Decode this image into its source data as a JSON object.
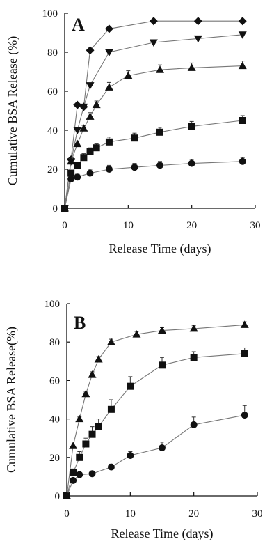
{
  "chart_data": [
    {
      "type": "line",
      "panel_label": "A",
      "ylabel": "Cumulative BSA Release (%)",
      "xlabel": "Release Time (days)",
      "xlim": [
        0,
        30
      ],
      "ylim": [
        0,
        100
      ],
      "xticks": [
        0,
        10,
        20,
        30
      ],
      "yticks": [
        0,
        20,
        40,
        60,
        80,
        100
      ],
      "grid": false,
      "series": [
        {
          "marker": "diamond",
          "x": [
            0,
            1,
            2,
            3,
            4,
            7,
            14,
            21,
            28
          ],
          "y": [
            0,
            25,
            53,
            52,
            81,
            92,
            96,
            96,
            96
          ],
          "err": [
            0,
            0,
            0,
            0,
            0,
            0,
            0,
            0,
            0
          ]
        },
        {
          "marker": "triangle-down",
          "x": [
            0,
            1,
            2,
            3,
            4,
            7,
            14,
            21,
            28
          ],
          "y": [
            0,
            24,
            40,
            52,
            63,
            80,
            85,
            87,
            89
          ],
          "err": [
            0,
            0,
            0,
            0,
            0,
            0,
            0,
            0,
            0
          ]
        },
        {
          "marker": "triangle-up",
          "x": [
            0,
            1,
            2,
            3,
            4,
            5,
            7,
            10,
            15,
            20,
            28
          ],
          "y": [
            0,
            24,
            33,
            41,
            47,
            53,
            62,
            68,
            71,
            72,
            73
          ],
          "err": [
            0,
            1.5,
            1.5,
            1.5,
            2,
            2,
            2.5,
            2.5,
            2.5,
            2.5,
            2.5
          ]
        },
        {
          "marker": "square",
          "x": [
            0,
            1,
            2,
            3,
            4,
            5,
            7,
            11,
            15,
            20,
            28
          ],
          "y": [
            0,
            18,
            22,
            26,
            29,
            31,
            34,
            36,
            39,
            42,
            45
          ],
          "err": [
            0,
            1.5,
            1.5,
            2,
            2,
            2,
            2.5,
            2.5,
            2.5,
            2.5,
            2.5
          ]
        },
        {
          "marker": "circle",
          "x": [
            0,
            1,
            2,
            4,
            7,
            11,
            15,
            20,
            28
          ],
          "y": [
            0,
            15,
            16,
            18,
            20,
            21,
            22,
            23,
            24
          ],
          "err": [
            0,
            1.5,
            1.5,
            2,
            2,
            2,
            2,
            2,
            2
          ]
        }
      ]
    },
    {
      "type": "line",
      "panel_label": "B",
      "ylabel": "Cumulative BSA Release(%)",
      "xlabel": "Release Time (days)",
      "xlim": [
        0,
        30
      ],
      "ylim": [
        0,
        100
      ],
      "xticks": [
        0,
        10,
        20,
        30
      ],
      "yticks": [
        0,
        20,
        40,
        60,
        80,
        100
      ],
      "grid": false,
      "series": [
        {
          "marker": "triangle-up",
          "x": [
            0,
            1,
            2,
            3,
            4,
            5,
            7,
            11,
            15,
            20,
            28
          ],
          "y": [
            0,
            26,
            40,
            53,
            63,
            71,
            80,
            84,
            86,
            87,
            89
          ],
          "err": [
            0,
            1,
            1,
            1,
            1.5,
            1.5,
            1.5,
            1.5,
            1.5,
            1.5,
            1.5
          ]
        },
        {
          "marker": "square",
          "x": [
            0,
            1,
            2,
            3,
            4,
            5,
            7,
            10,
            15,
            20,
            28
          ],
          "y": [
            0,
            12,
            20,
            27,
            32,
            36,
            45,
            57,
            68,
            72,
            74
          ],
          "err": [
            0,
            2,
            3,
            3,
            4,
            4,
            5,
            5,
            4,
            3,
            3
          ]
        },
        {
          "marker": "circle",
          "x": [
            0,
            1,
            2,
            4,
            7,
            10,
            15,
            20,
            28
          ],
          "y": [
            0,
            8,
            11,
            11.5,
            15,
            21,
            25,
            37,
            42
          ],
          "err": [
            0,
            1,
            1,
            1,
            1.5,
            2,
            3,
            4,
            5
          ]
        }
      ]
    }
  ]
}
